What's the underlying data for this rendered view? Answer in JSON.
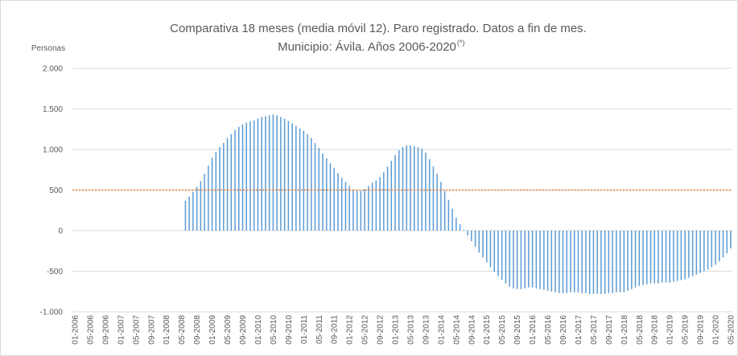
{
  "chart_data": {
    "type": "bar",
    "title": "Comparativa 18 meses (media móvil 12). Paro registrado. Datos a fin de mes.",
    "subtitle": "Municipio: Ávila. Años 2006-2020",
    "subtitle_note": "(*)",
    "y_label": "Personas",
    "color": "#5b9bd5",
    "reference_line": {
      "value": 500,
      "color": "#ed7d31"
    },
    "grid": true,
    "ylim": [
      -1000,
      2000
    ],
    "yticks": [
      {
        "value": -1000,
        "label": "-1.000"
      },
      -500,
      0,
      500,
      {
        "value": 1000,
        "label": "1.000"
      },
      {
        "value": 1500,
        "label": "1.500"
      },
      {
        "value": 2000,
        "label": "2.000"
      }
    ],
    "categories": [
      "01-2006",
      null,
      null,
      null,
      "05-2006",
      null,
      null,
      null,
      "09-2006",
      null,
      null,
      null,
      "01-2007",
      null,
      null,
      null,
      "05-2007",
      null,
      null,
      null,
      "09-2007",
      null,
      null,
      null,
      "01-2008",
      null,
      null,
      null,
      "05-2008",
      null,
      null,
      null,
      "09-2008",
      null,
      null,
      null,
      "01-2009",
      null,
      null,
      null,
      "05-2009",
      null,
      null,
      null,
      "09-2009",
      null,
      null,
      null,
      "01-2010",
      null,
      null,
      null,
      "05-2010",
      null,
      null,
      null,
      "09-2010",
      null,
      null,
      null,
      "01-2011",
      null,
      null,
      null,
      "05-2011",
      null,
      null,
      null,
      "09-2011",
      null,
      null,
      null,
      "01-2012",
      null,
      null,
      null,
      "05-2012",
      null,
      null,
      null,
      "09-2012",
      null,
      null,
      null,
      "01-2013",
      null,
      null,
      null,
      "05-2013",
      null,
      null,
      null,
      "09-2013",
      null,
      null,
      null,
      "01-2014",
      null,
      null,
      null,
      "05-2014",
      null,
      null,
      null,
      "09-2014",
      null,
      null,
      null,
      "01-2015",
      null,
      null,
      null,
      "05-2015",
      null,
      null,
      null,
      "09-2015",
      null,
      null,
      null,
      "01-2016",
      null,
      null,
      null,
      "05-2016",
      null,
      null,
      null,
      "09-2016",
      null,
      null,
      null,
      "01-2017",
      null,
      null,
      null,
      "05-2017",
      null,
      null,
      null,
      "09-2017",
      null,
      null,
      null,
      "01-2018",
      null,
      null,
      null,
      "05-2018",
      null,
      null,
      null,
      "09-2018",
      null,
      null,
      null,
      "01-2019",
      null,
      null,
      null,
      "05-2019",
      null,
      null,
      null,
      "09-2019",
      null,
      null,
      null,
      "01-2020",
      null,
      null,
      null,
      "05-2020"
    ],
    "values": [
      null,
      null,
      null,
      null,
      null,
      null,
      null,
      null,
      null,
      null,
      null,
      null,
      null,
      null,
      null,
      null,
      null,
      null,
      null,
      null,
      null,
      null,
      null,
      null,
      null,
      null,
      null,
      null,
      null,
      370,
      420,
      480,
      540,
      610,
      700,
      800,
      900,
      970,
      1030,
      1080,
      1140,
      1190,
      1240,
      1280,
      1310,
      1330,
      1350,
      1360,
      1380,
      1400,
      1410,
      1420,
      1430,
      1420,
      1400,
      1380,
      1350,
      1320,
      1290,
      1260,
      1230,
      1190,
      1140,
      1080,
      1020,
      950,
      890,
      830,
      770,
      710,
      650,
      600,
      550,
      510,
      490,
      490,
      510,
      550,
      590,
      620,
      660,
      720,
      790,
      860,
      930,
      990,
      1030,
      1050,
      1050,
      1040,
      1030,
      1010,
      960,
      880,
      790,
      700,
      600,
      490,
      380,
      270,
      160,
      80,
      10,
      -60,
      -130,
      -200,
      -270,
      -330,
      -390,
      -450,
      -510,
      -560,
      -610,
      -650,
      -690,
      -710,
      -720,
      -720,
      -710,
      -700,
      -700,
      -710,
      -720,
      -730,
      -740,
      -750,
      -760,
      -770,
      -770,
      -770,
      -760,
      -760,
      -760,
      -770,
      -770,
      -780,
      -780,
      -780,
      -780,
      -780,
      -770,
      -770,
      -760,
      -760,
      -760,
      -740,
      -720,
      -700,
      -680,
      -670,
      -660,
      -650,
      -650,
      -650,
      -640,
      -640,
      -640,
      -630,
      -620,
      -610,
      -600,
      -580,
      -560,
      -540,
      -520,
      -500,
      -480,
      -450,
      -420,
      -380,
      -330,
      -280,
      -220
    ]
  }
}
